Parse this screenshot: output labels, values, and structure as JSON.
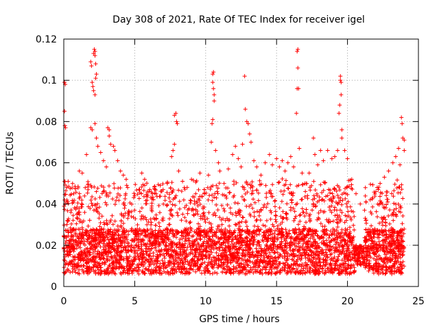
{
  "chart_data": {
    "type": "scatter",
    "title": "Day 308 of 2021, Rate Of TEC Index for receiver igel",
    "xlabel": "GPS time / hours",
    "ylabel": "ROTI / TECUs",
    "xlim": [
      0,
      25
    ],
    "ylim": [
      0,
      0.12
    ],
    "xticks": [
      "0",
      "5",
      "10",
      "15",
      "20",
      "25"
    ],
    "yticks": [
      "0",
      "0.02",
      "0.04",
      "0.06",
      "0.08",
      "0.1",
      "0.12"
    ],
    "grid": true,
    "legend": "none",
    "marker": "plus",
    "color": "#ff0000",
    "series": [
      {
        "points": [
          [
            0.05,
            0.099
          ],
          [
            0.1,
            0.098
          ],
          [
            0.05,
            0.085
          ],
          [
            0.08,
            0.078
          ],
          [
            0.12,
            0.077
          ],
          [
            0.1,
            0.04
          ],
          [
            0.2,
            0.041
          ],
          [
            0.3,
            0.032
          ],
          [
            0.5,
            0.036
          ],
          [
            0.7,
            0.045
          ],
          [
            1.1,
            0.056
          ],
          [
            1.3,
            0.055
          ],
          [
            1.6,
            0.064
          ],
          [
            1.9,
            0.109
          ],
          [
            1.95,
            0.107
          ],
          [
            2.0,
            0.099
          ],
          [
            2.05,
            0.097
          ],
          [
            2.1,
            0.095
          ],
          [
            2.1,
            0.113
          ],
          [
            2.15,
            0.115
          ],
          [
            2.2,
            0.114
          ],
          [
            2.2,
            0.112
          ],
          [
            2.25,
            0.108
          ],
          [
            2.3,
            0.103
          ],
          [
            2.25,
            0.101
          ],
          [
            2.2,
            0.093
          ],
          [
            1.9,
            0.077
          ],
          [
            2.0,
            0.076
          ],
          [
            2.2,
            0.079
          ],
          [
            2.3,
            0.072
          ],
          [
            2.4,
            0.068
          ],
          [
            2.6,
            0.065
          ],
          [
            2.8,
            0.061
          ],
          [
            3.0,
            0.058
          ],
          [
            3.1,
            0.077
          ],
          [
            3.2,
            0.076
          ],
          [
            3.2,
            0.073
          ],
          [
            3.3,
            0.069
          ],
          [
            3.5,
            0.068
          ],
          [
            3.6,
            0.066
          ],
          [
            3.8,
            0.061
          ],
          [
            4.0,
            0.056
          ],
          [
            4.2,
            0.054
          ],
          [
            4.4,
            0.052
          ],
          [
            4.5,
            0.048
          ],
          [
            5.0,
            0.044
          ],
          [
            5.3,
            0.047
          ],
          [
            5.5,
            0.055
          ],
          [
            5.7,
            0.052
          ],
          [
            6.0,
            0.046
          ],
          [
            6.2,
            0.039
          ],
          [
            6.5,
            0.045
          ],
          [
            6.8,
            0.049
          ],
          [
            7.0,
            0.047
          ],
          [
            7.3,
            0.05
          ],
          [
            7.6,
            0.063
          ],
          [
            7.7,
            0.066
          ],
          [
            7.8,
            0.069
          ],
          [
            7.8,
            0.083
          ],
          [
            7.9,
            0.084
          ],
          [
            7.95,
            0.08
          ],
          [
            8.0,
            0.079
          ],
          [
            8.1,
            0.056
          ],
          [
            8.5,
            0.048
          ],
          [
            9.0,
            0.052
          ],
          [
            9.3,
            0.045
          ],
          [
            9.6,
            0.055
          ],
          [
            9.9,
            0.047
          ],
          [
            10.2,
            0.054
          ],
          [
            10.4,
            0.07
          ],
          [
            10.45,
            0.079
          ],
          [
            10.5,
            0.103
          ],
          [
            10.55,
            0.104
          ],
          [
            10.5,
            0.099
          ],
          [
            10.55,
            0.096
          ],
          [
            10.6,
            0.093
          ],
          [
            10.6,
            0.09
          ],
          [
            10.5,
            0.081
          ],
          [
            10.7,
            0.066
          ],
          [
            10.9,
            0.06
          ],
          [
            11.0,
            0.056
          ],
          [
            11.3,
            0.05
          ],
          [
            11.6,
            0.057
          ],
          [
            11.9,
            0.064
          ],
          [
            12.1,
            0.068
          ],
          [
            12.3,
            0.062
          ],
          [
            12.5,
            0.058
          ],
          [
            12.6,
            0.069
          ],
          [
            12.75,
            0.102
          ],
          [
            12.8,
            0.086
          ],
          [
            12.9,
            0.08
          ],
          [
            13.0,
            0.079
          ],
          [
            13.1,
            0.074
          ],
          [
            13.2,
            0.07
          ],
          [
            13.4,
            0.061
          ],
          [
            13.6,
            0.058
          ],
          [
            13.9,
            0.054
          ],
          [
            14.2,
            0.06
          ],
          [
            14.5,
            0.064
          ],
          [
            14.7,
            0.059
          ],
          [
            15.0,
            0.062
          ],
          [
            15.2,
            0.058
          ],
          [
            15.4,
            0.061
          ],
          [
            15.6,
            0.056
          ],
          [
            15.8,
            0.06
          ],
          [
            16.0,
            0.063
          ],
          [
            16.2,
            0.058
          ],
          [
            16.4,
            0.084
          ],
          [
            16.45,
            0.096
          ],
          [
            16.5,
            0.106
          ],
          [
            16.45,
            0.114
          ],
          [
            16.5,
            0.115
          ],
          [
            16.55,
            0.096
          ],
          [
            16.6,
            0.067
          ],
          [
            16.8,
            0.055
          ],
          [
            17.0,
            0.05
          ],
          [
            17.3,
            0.055
          ],
          [
            17.6,
            0.072
          ],
          [
            17.7,
            0.064
          ],
          [
            17.9,
            0.059
          ],
          [
            18.1,
            0.066
          ],
          [
            18.3,
            0.061
          ],
          [
            18.6,
            0.066
          ],
          [
            18.9,
            0.062
          ],
          [
            19.1,
            0.063
          ],
          [
            19.3,
            0.066
          ],
          [
            19.4,
            0.084
          ],
          [
            19.45,
            0.088
          ],
          [
            19.5,
            0.1
          ],
          [
            19.5,
            0.102
          ],
          [
            19.55,
            0.099
          ],
          [
            19.55,
            0.093
          ],
          [
            19.6,
            0.076
          ],
          [
            19.6,
            0.072
          ],
          [
            19.8,
            0.066
          ],
          [
            20.0,
            0.062
          ],
          [
            20.3,
            0.052
          ],
          [
            20.6,
            0.045
          ],
          [
            20.9,
            0.04
          ],
          [
            21.2,
            0.037
          ],
          [
            21.6,
            0.042
          ],
          [
            22.0,
            0.046
          ],
          [
            22.3,
            0.05
          ],
          [
            22.6,
            0.053
          ],
          [
            22.9,
            0.056
          ],
          [
            23.2,
            0.06
          ],
          [
            23.4,
            0.063
          ],
          [
            23.6,
            0.067
          ],
          [
            23.7,
            0.059
          ],
          [
            23.8,
            0.082
          ],
          [
            23.85,
            0.079
          ],
          [
            23.9,
            0.072
          ],
          [
            24.0,
            0.071
          ],
          [
            24.0,
            0.066
          ]
        ]
      }
    ]
  }
}
